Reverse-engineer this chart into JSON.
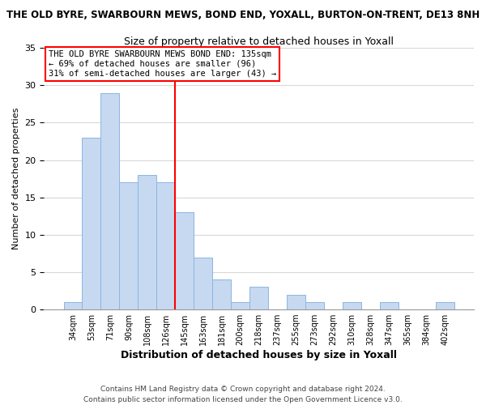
{
  "title_main": "THE OLD BYRE, SWARBOURN MEWS, BOND END, YOXALL, BURTON-ON-TRENT, DE13 8NH",
  "title_sub": "Size of property relative to detached houses in Yoxall",
  "xlabel": "Distribution of detached houses by size in Yoxall",
  "ylabel": "Number of detached properties",
  "bin_labels": [
    "34sqm",
    "53sqm",
    "71sqm",
    "90sqm",
    "108sqm",
    "126sqm",
    "145sqm",
    "163sqm",
    "181sqm",
    "200sqm",
    "218sqm",
    "237sqm",
    "255sqm",
    "273sqm",
    "292sqm",
    "310sqm",
    "328sqm",
    "347sqm",
    "365sqm",
    "384sqm",
    "402sqm"
  ],
  "bar_values": [
    1,
    23,
    29,
    17,
    18,
    17,
    13,
    7,
    4,
    1,
    3,
    0,
    2,
    1,
    0,
    1,
    0,
    1,
    0,
    0,
    1
  ],
  "bar_color": "#c6d9f0",
  "bar_edge_color": "#8db4e2",
  "vline_x_index": 6,
  "vline_color": "red",
  "annotation_title": "THE OLD BYRE SWARBOURN MEWS BOND END: 135sqm",
  "annotation_line2": "← 69% of detached houses are smaller (96)",
  "annotation_line3": "31% of semi-detached houses are larger (43) →",
  "ylim": [
    0,
    35
  ],
  "yticks": [
    0,
    5,
    10,
    15,
    20,
    25,
    30,
    35
  ],
  "footnote1": "Contains HM Land Registry data © Crown copyright and database right 2024.",
  "footnote2": "Contains public sector information licensed under the Open Government Licence v3.0.",
  "background_color": "#ffffff",
  "grid_color": "#d8d8d8"
}
